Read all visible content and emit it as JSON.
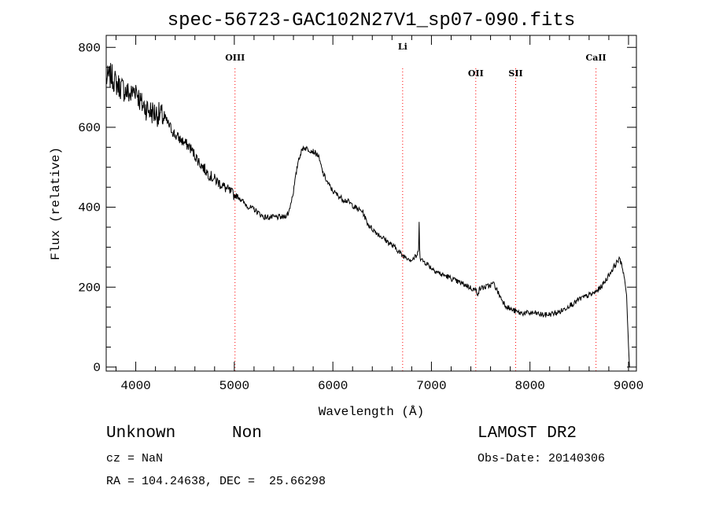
{
  "chart_data": {
    "type": "line",
    "title": "spec-56723-GAC102N27V1_sp07-090.fits",
    "xlabel": "Wavelength (Å)",
    "ylabel": "Flux (relative)",
    "xlim": [
      3700,
      9080
    ],
    "ylim": [
      -10,
      830
    ],
    "xticks": [
      4000,
      5000,
      6000,
      7000,
      8000,
      9000
    ],
    "yticks": [
      0,
      200,
      400,
      600,
      800
    ],
    "line_color": "#000000",
    "marker_color": "#ff0000",
    "spectral_lines": [
      {
        "name": "OIII",
        "wavelength": 5007
      },
      {
        "name": "Li",
        "wavelength": 6708
      },
      {
        "name": "OII",
        "wavelength": 7450
      },
      {
        "name": "SII",
        "wavelength": 7855
      },
      {
        "name": "CaII",
        "wavelength": 8670
      }
    ],
    "series": [
      {
        "x": [
          3700,
          3750,
          3800,
          3850,
          3900,
          3950,
          4000,
          4050,
          4100,
          4150,
          4200,
          4250,
          4300,
          4350,
          4400,
          4450,
          4500,
          4550,
          4600,
          4650,
          4700,
          4750,
          4800,
          4850,
          4900,
          4950,
          5000,
          5050,
          5100,
          5150,
          5200,
          5250,
          5300,
          5350,
          5400,
          5450,
          5500,
          5550,
          5600,
          5650,
          5700,
          5750,
          5800,
          5850,
          5900,
          5950,
          6000,
          6050,
          6100,
          6150,
          6200,
          6250,
          6300,
          6350,
          6400,
          6450,
          6500,
          6550,
          6600,
          6650,
          6700,
          6750,
          6800,
          6850,
          6870,
          6875,
          6880,
          6885,
          6890,
          6900,
          6950,
          7000,
          7050,
          7100,
          7150,
          7200,
          7250,
          7300,
          7350,
          7400,
          7450,
          7470,
          7490,
          7500,
          7550,
          7600,
          7630,
          7650,
          7700,
          7750,
          7800,
          7850,
          7900,
          7950,
          8000,
          8050,
          8100,
          8150,
          8200,
          8250,
          8300,
          8350,
          8400,
          8450,
          8500,
          8550,
          8600,
          8650,
          8700,
          8750,
          8800,
          8850,
          8900,
          8930,
          8960,
          8980,
          9000,
          9010
        ],
        "y": [
          720,
          730,
          710,
          700,
          690,
          680,
          700,
          660,
          650,
          640,
          635,
          630,
          620,
          600,
          580,
          570,
          560,
          550,
          530,
          510,
          495,
          480,
          470,
          460,
          450,
          440,
          430,
          425,
          410,
          400,
          395,
          385,
          375,
          375,
          375,
          375,
          375,
          385,
          440,
          520,
          550,
          545,
          540,
          530,
          485,
          460,
          440,
          430,
          420,
          415,
          405,
          395,
          390,
          360,
          345,
          335,
          325,
          315,
          305,
          295,
          280,
          275,
          268,
          278,
          290,
          370,
          300,
          280,
          272,
          268,
          260,
          248,
          240,
          232,
          228,
          222,
          215,
          210,
          205,
          198,
          192,
          185,
          195,
          198,
          200,
          205,
          210,
          200,
          175,
          155,
          145,
          140,
          135,
          135,
          135,
          135,
          132,
          130,
          132,
          135,
          138,
          145,
          155,
          160,
          170,
          175,
          180,
          185,
          195,
          210,
          230,
          250,
          270,
          260,
          220,
          180,
          50,
          0
        ]
      }
    ],
    "info": {
      "class": "Unknown",
      "subclass": "Non",
      "cz": "cz = NaN",
      "coords": "RA = 104.24638, DEC =  25.66298",
      "survey": "LAMOST DR2",
      "obs_date": "Obs-Date: 20140306"
    }
  }
}
